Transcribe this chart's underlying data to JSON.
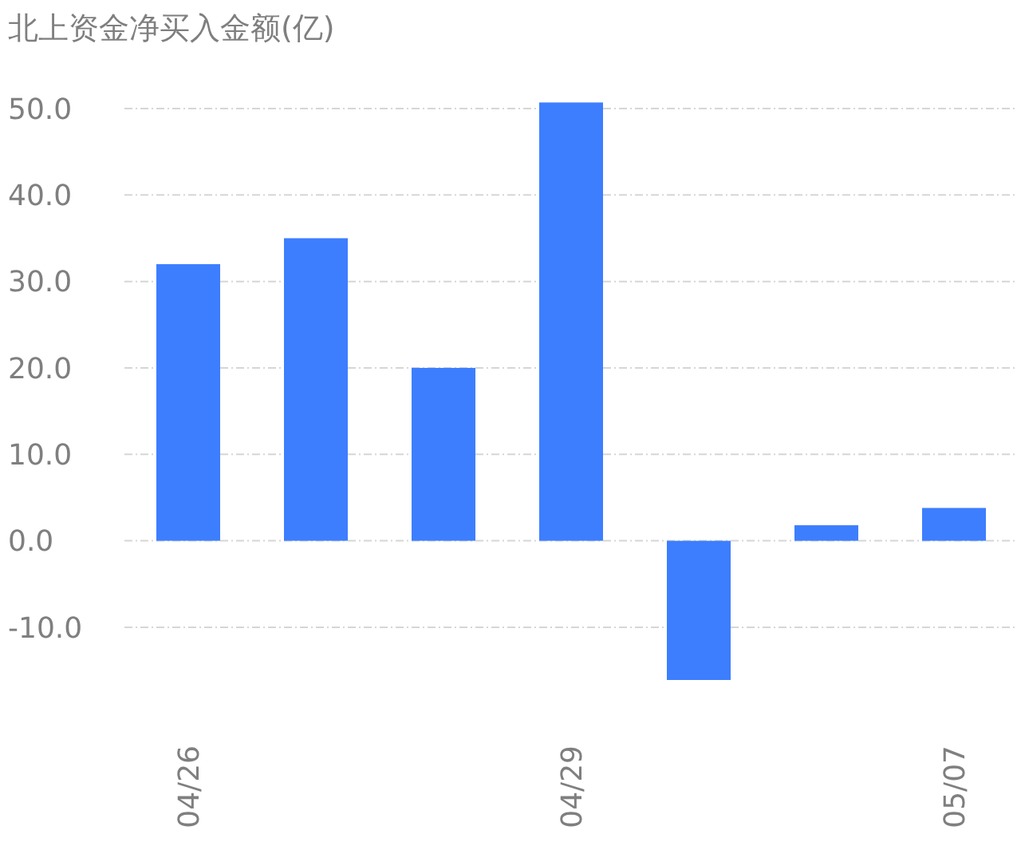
{
  "chart_data": {
    "type": "bar",
    "title": "北上资金净买入金额(亿)",
    "categories": [
      "04/26",
      null,
      null,
      "04/29",
      null,
      null,
      "05/07"
    ],
    "values": [
      32.0,
      35.0,
      20.0,
      50.7,
      -16.1,
      1.8,
      3.8
    ],
    "color": "#3d7eff",
    "ylim": [
      -16.1,
      50.7
    ],
    "yticks": [
      {
        "value": -10,
        "label": "-10.0"
      },
      {
        "value": 0,
        "label": "0.0"
      },
      {
        "value": 10,
        "label": "10.0"
      },
      {
        "value": 20,
        "label": "20.0"
      },
      {
        "value": 30,
        "label": "30.0"
      },
      {
        "value": 40,
        "label": "40.0"
      },
      {
        "value": 50,
        "label": "50.0"
      }
    ],
    "grid": "y"
  }
}
